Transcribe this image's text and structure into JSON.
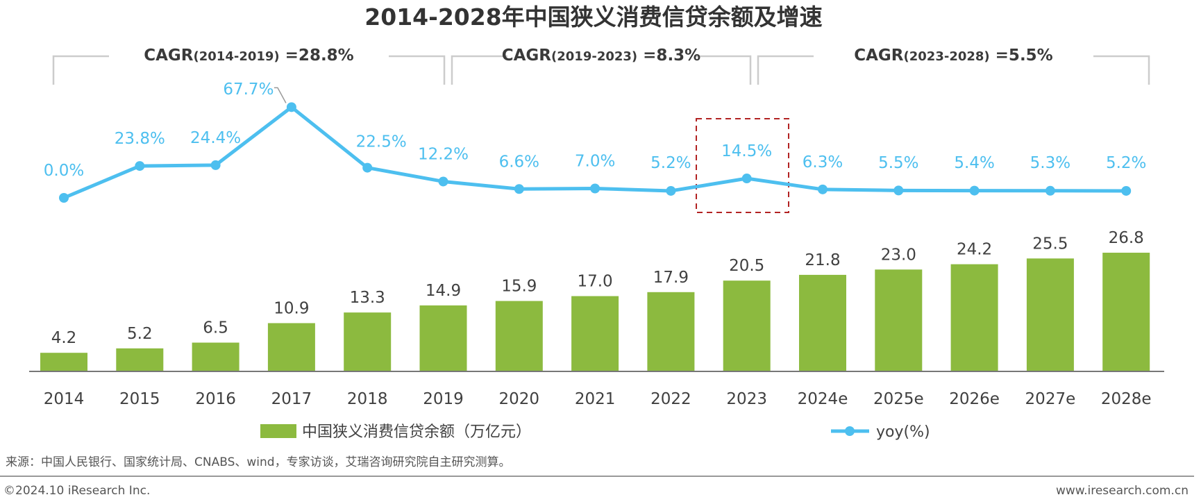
{
  "chart_data": {
    "type": "bar",
    "title": "2014-2028年中国狭义消费信贷余额及增速",
    "categories": [
      "2014",
      "2015",
      "2016",
      "2017",
      "2018",
      "2019",
      "2020",
      "2021",
      "2022",
      "2023",
      "2024e",
      "2025e",
      "2026e",
      "2027e",
      "2028e"
    ],
    "series": [
      {
        "name": "中国狭义消费信贷余额（万亿元）",
        "type": "bar",
        "color": "#8cba3f",
        "values": [
          4.2,
          5.2,
          6.5,
          10.9,
          13.3,
          14.9,
          15.9,
          17.0,
          17.9,
          20.5,
          21.8,
          23.0,
          24.2,
          25.5,
          26.8
        ],
        "labels": [
          "4.2",
          "5.2",
          "6.5",
          "10.9",
          "13.3",
          "14.9",
          "15.9",
          "17.0",
          "17.9",
          "20.5",
          "21.8",
          "23.0",
          "24.2",
          "25.5",
          "26.8"
        ]
      },
      {
        "name": "yoy(%)",
        "type": "line",
        "color": "#4dbfef",
        "axis": "secondary",
        "values": [
          0.0,
          23.8,
          24.4,
          67.7,
          22.5,
          12.2,
          6.6,
          7.0,
          5.2,
          14.5,
          6.3,
          5.5,
          5.4,
          5.3,
          5.2
        ],
        "labels": [
          "0.0%",
          "23.8%",
          "24.4%",
          "67.7%",
          "22.5%",
          "12.2%",
          "6.6%",
          "7.0%",
          "5.2%",
          "14.5%",
          "6.3%",
          "5.5%",
          "5.4%",
          "5.3%",
          "5.2%"
        ]
      }
    ],
    "annotations": {
      "cagr": [
        {
          "prefix": "CAGR",
          "period": "(2014-2019)",
          "value": " =28.8%"
        },
        {
          "prefix": "CAGR",
          "period": "(2019-2023)",
          "value": " =8.3%"
        },
        {
          "prefix": "CAGR",
          "period": "(2023-2028)",
          "value": " =5.5%"
        }
      ],
      "highlight_category": "2023",
      "highlight_color": "#b22222"
    },
    "legend_position": "bottom",
    "grid": false
  },
  "source": "来源：中国人民银行、国家统计局、CNABS、wind，专家访谈，艾瑞咨询研究院自主研究测算。",
  "footer": {
    "copyright": "©2024.10 iResearch Inc.",
    "website": "www.iresearch.com.cn"
  }
}
